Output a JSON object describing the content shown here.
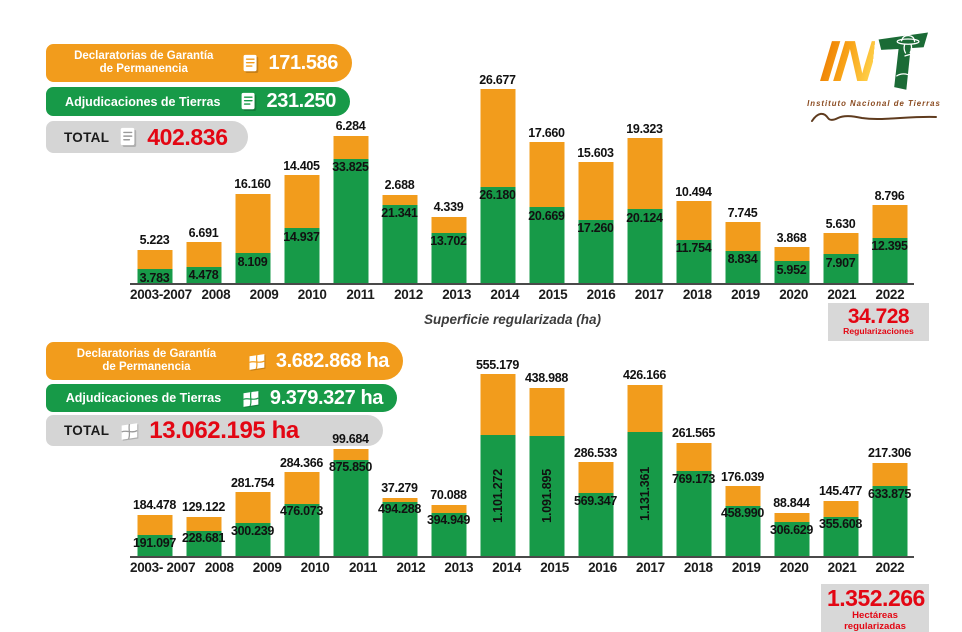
{
  "brand": {
    "logo_in": "IN",
    "name": "Instituto Nacional de Tierras"
  },
  "colors": {
    "orange": "#F29C1C",
    "green": "#179A48",
    "red": "#E30613",
    "pill_gray": "#D5D5D5",
    "badge_gray": "#D8D8D8",
    "axis": "#4A4A4A"
  },
  "legend_top": {
    "items": [
      {
        "label_lines": [
          "Declaratorias de Garantía",
          "de Permanencia"
        ],
        "value": "171.586"
      },
      {
        "label_lines": [
          "Adjudicaciones de Tierras"
        ],
        "value": "231.250"
      },
      {
        "label_lines": [
          "TOTAL"
        ],
        "value": "402.836"
      }
    ]
  },
  "legend_bottom": {
    "items": [
      {
        "label_lines": [
          "Declaratorias de Garantía",
          "de Permanencia"
        ],
        "value": "3.682.868 ha"
      },
      {
        "label_lines": [
          "Adjudicaciones de Tierras"
        ],
        "value": "9.379.327 ha"
      },
      {
        "label_lines": [
          "TOTAL"
        ],
        "value": "13.062.195 ha"
      }
    ]
  },
  "note_between": "Superficie regularizada (ha)",
  "badges": {
    "top": {
      "value": "34.728",
      "caption": "Regularizaciones"
    },
    "bottom": {
      "value": "1.352.266",
      "caption": "Hectáreas regularizadas"
    }
  },
  "chart_data": [
    {
      "type": "bar",
      "stacked": true,
      "title": "",
      "xlabel": "",
      "ylabel": "",
      "ylim": [
        0,
        55000
      ],
      "grid": false,
      "legend_position": "top-left",
      "categories": [
        "2003-2007",
        "2008",
        "2009",
        "2010",
        "2011",
        "2012",
        "2013",
        "2014",
        "2015",
        "2016",
        "2017",
        "2018",
        "2019",
        "2020",
        "2021",
        "2022"
      ],
      "series": [
        {
          "name": "Adjudicaciones de Tierras",
          "color": "#179A48",
          "values": [
            3783,
            4478,
            8109,
            14937,
            33825,
            21341,
            13702,
            26180,
            20669,
            17260,
            20124,
            11754,
            8834,
            5952,
            7907,
            12395
          ],
          "labels": [
            "3.783",
            "4.478",
            "8.109",
            "14.937",
            "33.825",
            "21.341",
            "13.702",
            "26.180",
            "20.669",
            "17.260",
            "20.124",
            "11.754",
            "8.834",
            "5.952",
            "7.907",
            "12.395"
          ]
        },
        {
          "name": "Declaratorias de Garantía de Permanencia",
          "color": "#F29C1C",
          "values": [
            5223,
            6691,
            16160,
            14405,
            6284,
            2688,
            4339,
            26677,
            17660,
            15603,
            19323,
            10494,
            7745,
            3868,
            5630,
            8796
          ],
          "labels": [
            "5.223",
            "6.691",
            "16.160",
            "14.405",
            "6.284",
            "2.688",
            "4.339",
            "26.677",
            "17.660",
            "15.603",
            "19.323",
            "10.494",
            "7.745",
            "3.868",
            "5.630",
            "8.796"
          ]
        }
      ]
    },
    {
      "type": "bar",
      "stacked": true,
      "title": "Superficie regularizada (ha)",
      "xlabel": "",
      "ylabel": "",
      "ylim": [
        0,
        1700000
      ],
      "grid": false,
      "legend_position": "top-left",
      "categories": [
        "2003- 2007",
        "2008",
        "2009",
        "2010",
        "2011",
        "2012",
        "2013",
        "2014",
        "2015",
        "2016",
        "2017",
        "2018",
        "2019",
        "2020",
        "2021",
        "2022"
      ],
      "series": [
        {
          "name": "Adjudicaciones de Tierras",
          "color": "#179A48",
          "values": [
            191097,
            228681,
            300239,
            476073,
            875850,
            494288,
            394949,
            1101272,
            1091895,
            569347,
            1131361,
            769173,
            458990,
            306629,
            355608,
            633875
          ],
          "labels": [
            "191.097",
            "228.681",
            "300.239",
            "476.073",
            "875.850",
            "494.288",
            "394.949",
            "1.101.272",
            "1.091.895",
            "569.347",
            "1.131.361",
            "769.173",
            "458.990",
            "306.629",
            "355.608",
            "633.875"
          ]
        },
        {
          "name": "Declaratorias de Garantía de Permanencia",
          "color": "#F29C1C",
          "values": [
            184478,
            129122,
            281754,
            284366,
            99684,
            37279,
            70088,
            555179,
            438988,
            286533,
            426166,
            261565,
            176039,
            88844,
            145477,
            217306
          ],
          "labels": [
            "184.478",
            "129.122",
            "281.754",
            "284.366",
            "99.684",
            "37.279",
            "70.088",
            "555.179",
            "438.988",
            "286.533",
            "426.166",
            "261.565",
            "176.039",
            "88.844",
            "145.477",
            "217.306"
          ]
        }
      ]
    }
  ]
}
